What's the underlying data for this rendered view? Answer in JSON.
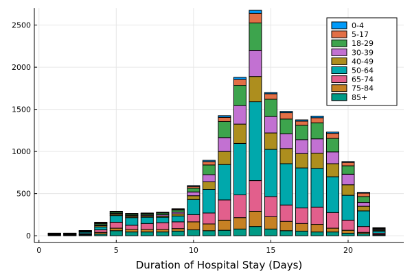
{
  "chart_data": {
    "type": "bar",
    "stacked": true,
    "title": "",
    "xlabel": "Duration of Hospital Stay (Days)",
    "ylabel": "",
    "xlim": [
      -0.3,
      23.6
    ],
    "ylim": [
      -80,
      2700
    ],
    "x_ticks": [
      0,
      5,
      10,
      15,
      20
    ],
    "y_ticks": [
      0,
      500,
      1000,
      1500,
      2000,
      2500
    ],
    "grid": true,
    "legend_position": "top-right",
    "x": [
      1,
      2,
      3,
      4,
      5,
      6,
      7,
      8,
      9,
      10,
      11,
      12,
      13,
      14,
      15,
      16,
      17,
      18,
      19,
      20,
      21,
      22
    ],
    "series": [
      {
        "name": "85+",
        "color": "#009a85",
        "values": [
          8,
          6,
          10,
          20,
          60,
          45,
          45,
          45,
          55,
          70,
          60,
          65,
          80,
          110,
          80,
          60,
          55,
          45,
          45,
          30,
          25,
          10
        ]
      },
      {
        "name": "75-84",
        "color": "#c68124",
        "values": [
          3,
          2,
          5,
          20,
          30,
          30,
          30,
          30,
          30,
          95,
          80,
          120,
          135,
          180,
          145,
          110,
          90,
          90,
          45,
          35,
          15,
          5
        ]
      },
      {
        "name": "65-74",
        "color": "#e25f8c",
        "values": [
          4,
          4,
          10,
          30,
          70,
          50,
          70,
          80,
          80,
          85,
          130,
          240,
          270,
          365,
          240,
          195,
          185,
          205,
          185,
          120,
          70,
          15
        ]
      },
      {
        "name": "50-64",
        "color": "#00a8ac",
        "values": [
          5,
          6,
          18,
          35,
          80,
          90,
          75,
          65,
          70,
          180,
          280,
          420,
          610,
          935,
          560,
          490,
          475,
          460,
          425,
          295,
          185,
          25
        ]
      },
      {
        "name": "40-49",
        "color": "#ad8e1e",
        "values": [
          2,
          3,
          5,
          15,
          15,
          15,
          15,
          15,
          25,
          45,
          90,
          155,
          230,
          300,
          195,
          180,
          170,
          180,
          155,
          125,
          55,
          10
        ]
      },
      {
        "name": "30-39",
        "color": "#c271d2",
        "values": [
          2,
          3,
          4,
          10,
          10,
          10,
          10,
          15,
          20,
          45,
          85,
          165,
          220,
          310,
          195,
          175,
          165,
          170,
          140,
          125,
          45,
          10
        ]
      },
      {
        "name": "18-29",
        "color": "#3da44d",
        "values": [
          3,
          3,
          5,
          15,
          15,
          15,
          15,
          20,
          25,
          45,
          115,
          190,
          240,
          325,
          205,
          175,
          170,
          190,
          160,
          100,
          70,
          10
        ]
      },
      {
        "name": "5-17",
        "color": "#e26f46",
        "values": [
          2,
          2,
          3,
          10,
          5,
          5,
          5,
          5,
          10,
          20,
          40,
          50,
          70,
          115,
          65,
          75,
          50,
          60,
          60,
          40,
          40,
          5
        ]
      },
      {
        "name": "0-4",
        "color": "#009af9",
        "values": [
          2,
          2,
          2,
          5,
          5,
          5,
          5,
          5,
          5,
          10,
          15,
          20,
          25,
          35,
          15,
          15,
          15,
          20,
          15,
          10,
          10,
          5
        ]
      }
    ]
  }
}
